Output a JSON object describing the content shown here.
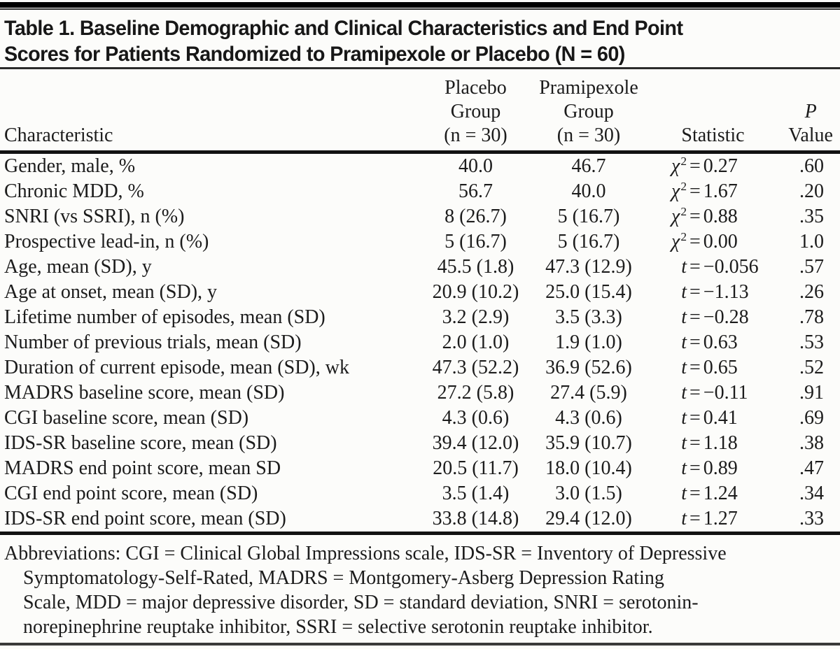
{
  "title": {
    "lines": [
      "Table 1. Baseline Demographic and Clinical Characteristics and End Point",
      "Scores for Patients Randomized to Pramipexole or Placebo (N = 60)"
    ]
  },
  "table": {
    "columns": {
      "characteristic": "Characteristic",
      "placebo": {
        "lines": [
          "Placebo",
          "Group",
          "(n = 30)"
        ]
      },
      "pramipexole": {
        "lines": [
          "Pramipexole",
          "Group",
          "(n = 30)"
        ]
      },
      "statistic": "Statistic",
      "p": {
        "lines": [
          "P",
          "Value"
        ]
      }
    },
    "rows": [
      {
        "label": "Gender, male, %",
        "placebo": "40.0",
        "pramipexole": "46.7",
        "stat_test": "chi2",
        "stat_value": "0.27",
        "p": ".60"
      },
      {
        "label": "Chronic MDD, %",
        "placebo": "56.7",
        "pramipexole": "40.0",
        "stat_test": "chi2",
        "stat_value": "1.67",
        "p": ".20"
      },
      {
        "label": "SNRI (vs SSRI), n (%)",
        "placebo": "8 (26.7)",
        "pramipexole": "5 (16.7)",
        "stat_test": "chi2",
        "stat_value": "0.88",
        "p": ".35"
      },
      {
        "label": "Prospective lead-in, n (%)",
        "placebo": "5 (16.7)",
        "pramipexole": "5 (16.7)",
        "stat_test": "chi2",
        "stat_value": "0.00",
        "p": "1.0"
      },
      {
        "label": "Age, mean (SD), y",
        "placebo": "45.5 (1.8)",
        "pramipexole": "47.3 (12.9)",
        "stat_test": "t",
        "stat_value": "−0.056",
        "p": ".57"
      },
      {
        "label": "Age at onset, mean (SD), y",
        "placebo": "20.9 (10.2)",
        "pramipexole": "25.0 (15.4)",
        "stat_test": "t",
        "stat_value": "−1.13",
        "p": ".26"
      },
      {
        "label": "Lifetime number of episodes, mean (SD)",
        "placebo": "3.2 (2.9)",
        "pramipexole": "3.5 (3.3)",
        "stat_test": "t",
        "stat_value": "−0.28",
        "p": ".78"
      },
      {
        "label": "Number of previous trials, mean (SD)",
        "placebo": "2.0 (1.0)",
        "pramipexole": "1.9 (1.0)",
        "stat_test": "t",
        "stat_value": "0.63",
        "p": ".53"
      },
      {
        "label": "Duration of current episode, mean (SD), wk",
        "placebo": "47.3 (52.2)",
        "pramipexole": "36.9 (52.6)",
        "stat_test": "t",
        "stat_value": "0.65",
        "p": ".52"
      },
      {
        "label": "MADRS baseline score, mean (SD)",
        "placebo": "27.2 (5.8)",
        "pramipexole": "27.4 (5.9)",
        "stat_test": "t",
        "stat_value": "−0.11",
        "p": ".91"
      },
      {
        "label": "CGI baseline score, mean (SD)",
        "placebo": "4.3 (0.6)",
        "pramipexole": "4.3 (0.6)",
        "stat_test": "t",
        "stat_value": "0.41",
        "p": ".69"
      },
      {
        "label": "IDS-SR baseline score, mean (SD)",
        "placebo": "39.4 (12.0)",
        "pramipexole": "35.9 (10.7)",
        "stat_test": "t",
        "stat_value": "1.18",
        "p": ".38"
      },
      {
        "label": "MADRS end point score, mean SD",
        "placebo": "20.5 (11.7)",
        "pramipexole": "18.0 (10.4)",
        "stat_test": "t",
        "stat_value": "0.89",
        "p": ".47"
      },
      {
        "label": "CGI end point score, mean (SD)",
        "placebo": "3.5 (1.4)",
        "pramipexole": "3.0 (1.5)",
        "stat_test": "t",
        "stat_value": "1.24",
        "p": ".34"
      },
      {
        "label": "IDS-SR end point score, mean (SD)",
        "placebo": "33.8 (14.8)",
        "pramipexole": "29.4 (12.0)",
        "stat_test": "t",
        "stat_value": "1.27",
        "p": ".33"
      }
    ]
  },
  "footnote": {
    "lines": [
      "Abbreviations: CGI = Clinical Global Impressions scale, IDS-SR = Inventory of Depressive",
      "Symptomatology-Self-Rated, MADRS = Montgomery-Asberg Depression Rating",
      "Scale, MDD = major depressive disorder, SD = standard deviation, SNRI = serotonin-",
      "norepinephrine reuptake inhibitor, SSRI = selective serotonin reuptake inhibitor."
    ]
  },
  "colors": {
    "background": "#fcfcfa",
    "text": "#1c1c1c",
    "top_bar": "#000000",
    "rule_dark": "#121212",
    "rule_bottom": "#3a3a3a"
  }
}
